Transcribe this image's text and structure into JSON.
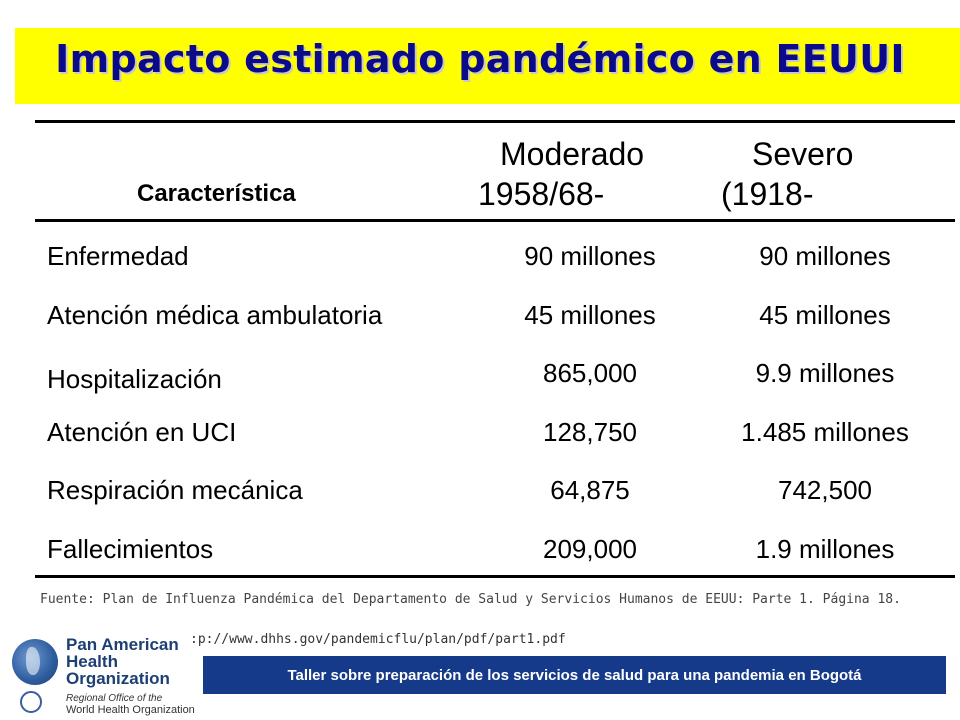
{
  "title": "Impacto estimado pandémico en EEUUI",
  "headers": {
    "characteristic": "Característica",
    "moderate_line1": "Moderado",
    "moderate_line2": "1958/68-",
    "severe_line1": "Severo",
    "severe_line2": "(1918-"
  },
  "rows": [
    {
      "label": "Enfermedad",
      "moderate": "90 millones",
      "severe": "90 millones"
    },
    {
      "label": "Atención médica ambulatoria",
      "moderate": "45 millones",
      "severe": "45 millones"
    },
    {
      "label": "Hospitalización",
      "moderate": "865,000",
      "severe": "9.9 millones"
    },
    {
      "label": "Atención en UCI",
      "moderate": "128,750",
      "severe": "1.485 millones"
    },
    {
      "label": "Respiración mecánica",
      "moderate": "64,875",
      "severe": "742,500"
    },
    {
      "label": "Fallecimientos",
      "moderate": "209,000",
      "severe": "1.9 millones"
    }
  ],
  "source": "Fuente: Plan de Influenza Pandémica del Departamento de Salud y Servicios Humanos de EEUU: Parte 1. Página 18.",
  "source_url": ":p://www.dhhs.gov/pandemicflu/plan/pdf/part1.pdf",
  "logo": {
    "line1": "Pan American",
    "line2": "Health",
    "line3": "Organization",
    "sub1": "Regional Office of the",
    "sub2": "World Health Organization"
  },
  "footer_banner": "Taller sobre preparación de los servicios de salud para una pandemia en Bogotá",
  "colors": {
    "title_bar": "#ffff00",
    "title_text": "#0a0a8a",
    "banner": "#163a8a"
  }
}
